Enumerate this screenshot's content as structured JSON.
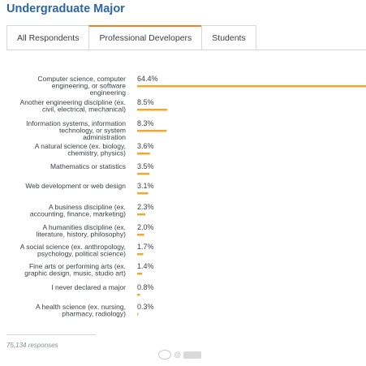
{
  "page_title": "Undergraduate Major",
  "tabs": [
    {
      "label": "All Respondents",
      "active": false
    },
    {
      "label": "Professional Developers",
      "active": true
    },
    {
      "label": "Students",
      "active": false
    }
  ],
  "chart_data": {
    "type": "bar",
    "orientation": "horizontal",
    "title": "Undergraduate Major",
    "categories": [
      [
        "Computer science, computer",
        "engineering, or software",
        "engineering"
      ],
      [
        "Another engineering discipline (ex.",
        "civil, electrical, mechanical)"
      ],
      [
        "Information systems, information",
        "technology, or system",
        "administration"
      ],
      [
        "A natural science (ex. biology,",
        "chemistry, physics)"
      ],
      [
        "Mathematics or statistics"
      ],
      [
        "Web development or web design"
      ],
      [
        "A business discipline (ex.",
        "accounting, finance, marketing)"
      ],
      [
        "A humanities discipline (ex.",
        "literature, history, philosophy)"
      ],
      [
        "A social science (ex. anthropology,",
        "psychology, political science)"
      ],
      [
        "Fine arts or performing arts (ex.",
        "graphic design, music, studio art)"
      ],
      [
        "I never declared a major"
      ],
      [
        "A health science (ex. nursing,",
        "pharmacy, radiology)"
      ]
    ],
    "values": [
      64.4,
      8.5,
      8.3,
      3.6,
      3.5,
      3.1,
      2.3,
      2.0,
      1.7,
      1.4,
      0.8,
      0.3
    ],
    "value_labels": [
      "64.4%",
      "8.5%",
      "8.3%",
      "3.6%",
      "3.5%",
      "3.1%",
      "2.3%",
      "2.0%",
      "1.7%",
      "1.4%",
      "0.8%",
      "0.3%"
    ],
    "unit": "%",
    "xlim": [
      0,
      64.4
    ],
    "bar_color": "#f0a82e",
    "grid": false,
    "legend": "none"
  },
  "footer": {
    "responses": "75,134 responses",
    "watermark": "@"
  }
}
